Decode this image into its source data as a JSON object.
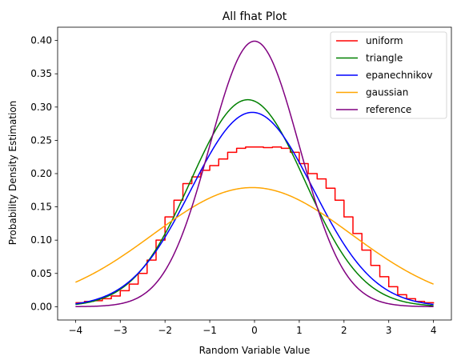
{
  "chart_data": {
    "type": "line",
    "title": "All fhat Plot",
    "xlabel": "Random Variable Value",
    "ylabel": "Probability Density Estimation",
    "xlim": [
      -4.4,
      4.4
    ],
    "ylim": [
      -0.02,
      0.42
    ],
    "xticks": [
      -4,
      -3,
      -2,
      -1,
      0,
      1,
      2,
      3,
      4
    ],
    "xtick_labels": [
      "−4",
      "−3",
      "−2",
      "−1",
      "0",
      "1",
      "2",
      "3",
      "4"
    ],
    "yticks": [
      0.0,
      0.05,
      0.1,
      0.15,
      0.2,
      0.25,
      0.3,
      0.35,
      0.4
    ],
    "ytick_labels": [
      "0.00",
      "0.05",
      "0.10",
      "0.15",
      "0.20",
      "0.25",
      "0.30",
      "0.35",
      "0.40"
    ],
    "grid": false,
    "legend_position": "top-right",
    "series": [
      {
        "name": "uniform",
        "color": "#ff0000",
        "step": true,
        "x": [
          -4,
          -3.8,
          -3.6,
          -3.4,
          -3.2,
          -3.0,
          -2.8,
          -2.6,
          -2.4,
          -2.2,
          -2.0,
          -1.8,
          -1.6,
          -1.4,
          -1.2,
          -1.0,
          -0.8,
          -0.6,
          -0.4,
          -0.2,
          0.0,
          0.2,
          0.4,
          0.6,
          0.8,
          1.0,
          1.2,
          1.4,
          1.6,
          1.8,
          2.0,
          2.2,
          2.4,
          2.6,
          2.8,
          3.0,
          3.2,
          3.4,
          3.6,
          3.8,
          4.0
        ],
        "y": [
          0.006,
          0.008,
          0.009,
          0.012,
          0.016,
          0.024,
          0.034,
          0.05,
          0.07,
          0.1,
          0.135,
          0.16,
          0.185,
          0.195,
          0.205,
          0.212,
          0.222,
          0.232,
          0.238,
          0.24,
          0.24,
          0.239,
          0.24,
          0.238,
          0.232,
          0.215,
          0.2,
          0.192,
          0.178,
          0.16,
          0.135,
          0.11,
          0.085,
          0.062,
          0.045,
          0.03,
          0.018,
          0.012,
          0.008,
          0.006,
          0.005
        ]
      },
      {
        "name": "triangle",
        "color": "#008000",
        "mu": -0.15,
        "sigma": 1.28,
        "peak": 0.311
      },
      {
        "name": "epanechnikov",
        "color": "#0000ff",
        "mu": -0.05,
        "sigma": 1.36,
        "peak": 0.292
      },
      {
        "name": "gaussian",
        "color": "#ffa500",
        "mu": -0.05,
        "sigma": 2.22,
        "peak": 0.179
      },
      {
        "name": "reference",
        "color": "#800080",
        "mu": 0.0,
        "sigma": 1.0,
        "peak": 0.399
      }
    ]
  }
}
